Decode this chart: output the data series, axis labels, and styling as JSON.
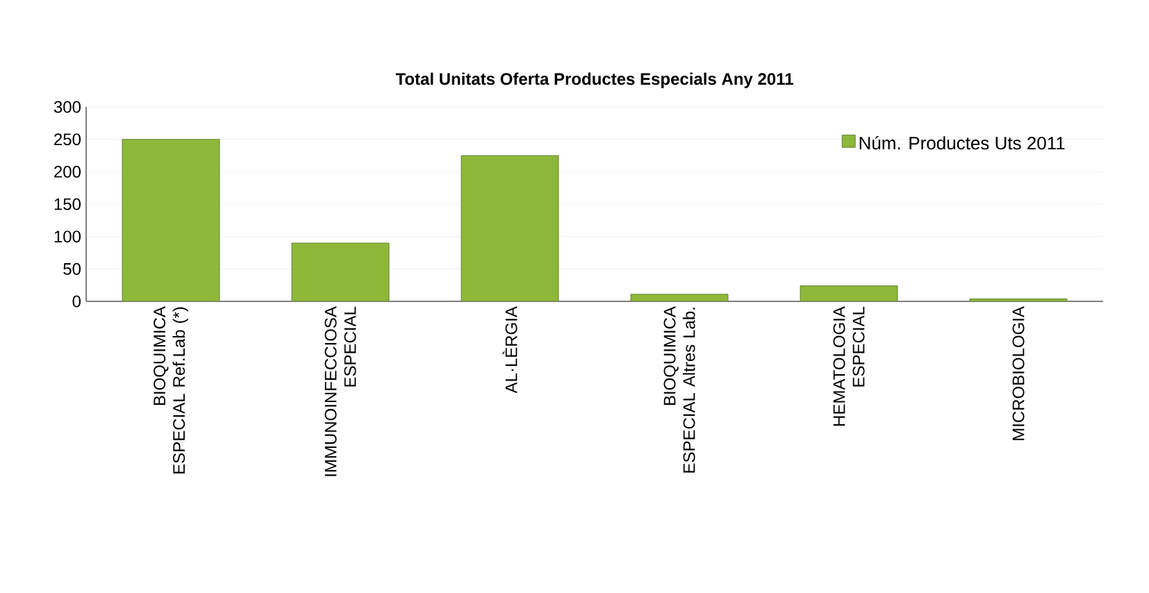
{
  "chart_data": {
    "type": "bar",
    "title": "Total  Unitats Oferta Productes Especials Any 2011",
    "categories": [
      "BIOQUIMICA ESPECIAL Ref.Lab (*)",
      "IMMUNOINFECCIOSA ESPECIAL",
      "AL·LÈRGIA",
      "BIOQUIMICA ESPECIAL Altres Lab.",
      "HEMATOLOGIA ESPECIAL",
      "MICROBIOLOGIA"
    ],
    "series": [
      {
        "name": "Núm. Productes Uts 2011",
        "color": "#8db83a",
        "values": [
          250,
          90,
          225,
          11,
          24,
          4
        ]
      }
    ],
    "ylim": [
      0,
      300
    ],
    "yticks": [
      0,
      50,
      100,
      150,
      200,
      250,
      300
    ],
    "grid": "y",
    "legend": "top right"
  }
}
